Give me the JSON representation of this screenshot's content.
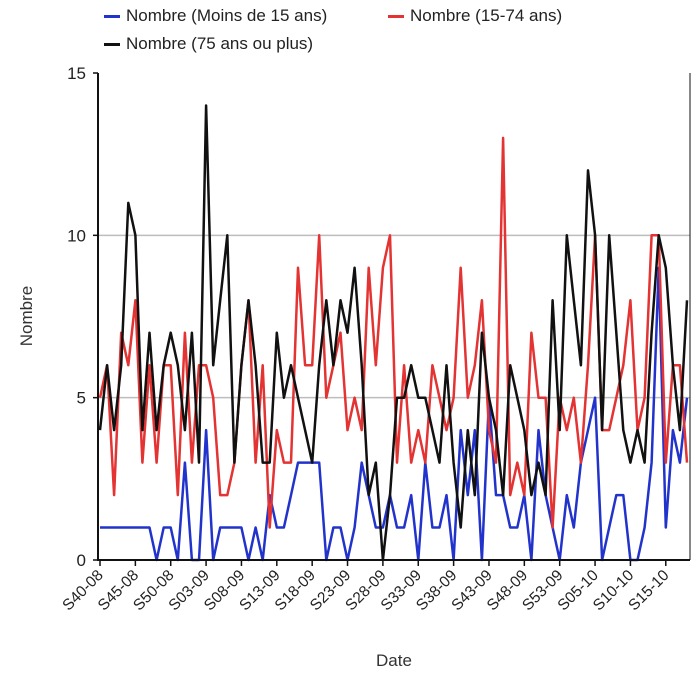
{
  "chart_data": {
    "type": "line",
    "title": "",
    "xlabel": "Date",
    "ylabel": "Nombre",
    "ylim": [
      0,
      15
    ],
    "y_ticks": [
      "0",
      "5",
      "10",
      "15"
    ],
    "grid": "horizontal",
    "legend_position": "top",
    "x_tick_labels": [
      "S40-08",
      "S45-08",
      "S50-08",
      "S03-09",
      "S08-09",
      "S13-09",
      "S18-09",
      "S23-09",
      "S28-09",
      "S33-09",
      "S38-09",
      "S43-09",
      "S48-09",
      "S53-09",
      "S05-10",
      "S10-10",
      "S15-10"
    ],
    "categories": [
      "S40-08",
      "S41-08",
      "S42-08",
      "S43-08",
      "S44-08",
      "S45-08",
      "S46-08",
      "S47-08",
      "S48-08",
      "S49-08",
      "S50-08",
      "S51-08",
      "S52-08",
      "S01-09",
      "S02-09",
      "S03-09",
      "S04-09",
      "S05-09",
      "S06-09",
      "S07-09",
      "S08-09",
      "S09-09",
      "S10-09",
      "S11-09",
      "S12-09",
      "S13-09",
      "S14-09",
      "S15-09",
      "S16-09",
      "S17-09",
      "S18-09",
      "S19-09",
      "S20-09",
      "S21-09",
      "S22-09",
      "S23-09",
      "S24-09",
      "S25-09",
      "S26-09",
      "S27-09",
      "S28-09",
      "S29-09",
      "S30-09",
      "S31-09",
      "S32-09",
      "S33-09",
      "S34-09",
      "S35-09",
      "S36-09",
      "S37-09",
      "S38-09",
      "S39-09",
      "S40-09",
      "S41-09",
      "S42-09",
      "S43-09",
      "S44-09",
      "S45-09",
      "S46-09",
      "S47-09",
      "S48-09",
      "S49-09",
      "S50-09",
      "S51-09",
      "S52-09",
      "S53-09",
      "S01-10",
      "S02-10",
      "S03-10",
      "S04-10",
      "S05-10",
      "S06-10",
      "S07-10",
      "S08-10",
      "S09-10",
      "S10-10",
      "S11-10",
      "S12-10",
      "S13-10",
      "S14-10",
      "S15-10",
      "S16-10",
      "S17-10",
      "S18-10"
    ],
    "series": [
      {
        "name": "Nombre (Moins de 15 ans)",
        "color": "#2233cc",
        "values": [
          1,
          1,
          1,
          1,
          1,
          1,
          1,
          1,
          0,
          1,
          1,
          0,
          3,
          0,
          0,
          4,
          0,
          1,
          1,
          1,
          1,
          0,
          1,
          0,
          2,
          1,
          1,
          2,
          3,
          3,
          3,
          3,
          0,
          1,
          1,
          0,
          1,
          3,
          2,
          1,
          1,
          2,
          1,
          1,
          2,
          0,
          3,
          1,
          1,
          2,
          0,
          4,
          2,
          4,
          0,
          5,
          2,
          2,
          1,
          1,
          2,
          0,
          4,
          2,
          1,
          0,
          2,
          1,
          3,
          4,
          5,
          0,
          1,
          2,
          2,
          0,
          0,
          1,
          3,
          9,
          1,
          4,
          3,
          5
        ]
      },
      {
        "name": "Nombre (15-74 ans)",
        "color": "#e33333",
        "values": [
          5,
          6,
          2,
          7,
          6,
          8,
          3,
          6,
          3,
          6,
          6,
          2,
          7,
          3,
          6,
          6,
          5,
          2,
          2,
          3,
          6,
          8,
          3,
          6,
          1,
          4,
          3,
          3,
          9,
          6,
          6,
          10,
          5,
          6,
          7,
          4,
          5,
          4,
          9,
          6,
          9,
          10,
          3,
          6,
          3,
          4,
          3,
          6,
          5,
          4,
          5,
          9,
          5,
          6,
          8,
          4,
          3,
          13,
          2,
          3,
          2,
          7,
          5,
          5,
          1,
          5,
          4,
          5,
          3,
          6,
          10,
          4,
          4,
          5,
          6,
          8,
          4,
          5,
          10,
          10,
          3,
          6,
          6,
          3
        ]
      },
      {
        "name": "Nombre (75 ans ou plus)",
        "color": "#111111",
        "values": [
          4,
          6,
          4,
          6,
          11,
          10,
          4,
          7,
          4,
          6,
          7,
          6,
          4,
          7,
          3,
          14,
          6,
          8,
          10,
          3,
          6,
          8,
          6,
          3,
          3,
          7,
          5,
          6,
          5,
          4,
          3,
          6,
          8,
          6,
          8,
          7,
          9,
          6,
          2,
          3,
          0,
          2,
          5,
          5,
          6,
          5,
          5,
          4,
          3,
          6,
          3,
          1,
          4,
          2,
          7,
          5,
          4,
          2,
          6,
          5,
          4,
          2,
          3,
          2,
          8,
          4,
          10,
          8,
          6,
          12,
          10,
          4,
          10,
          7,
          4,
          3,
          4,
          3,
          7,
          10,
          9,
          6,
          4,
          8
        ]
      }
    ]
  }
}
